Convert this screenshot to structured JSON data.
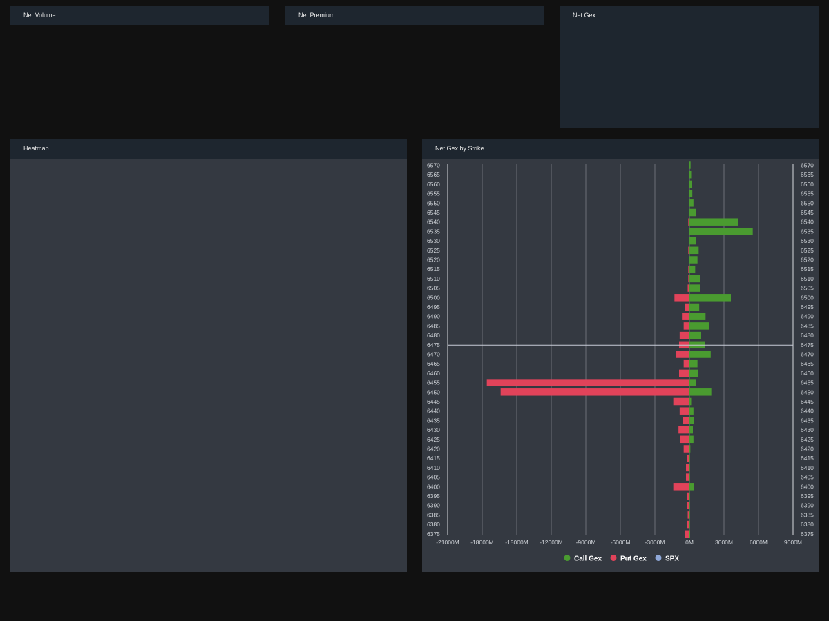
{
  "panels": {
    "net_volume": {
      "title": "Net Volume"
    },
    "net_premium": {
      "title": "Net Premium"
    },
    "net_gex": {
      "title": "Net Gex"
    },
    "heatmap": {
      "title": "Heatmap"
    },
    "net_gex_by_strike": {
      "title": "Net Gex by Strike"
    }
  },
  "colors": {
    "call": "#4a9b30",
    "put": "#e1435a",
    "spx": "#8fa8d8"
  },
  "chart_data": {
    "type": "bar",
    "orientation": "horizontal",
    "title": "Net Gex by Strike",
    "xlim": [
      -21000,
      9000
    ],
    "x_ticks": [
      -21000,
      -18000,
      -15000,
      -12000,
      -9000,
      -6000,
      -3000,
      0,
      3000,
      6000,
      9000
    ],
    "x_tick_labels": [
      "-21000M",
      "-18000M",
      "-15000M",
      "-12000M",
      "-9000M",
      "-6000M",
      "-3000M",
      "0M",
      "3000M",
      "6000M",
      "9000M"
    ],
    "grid": "vertical",
    "legend_position": "bottom-center",
    "left_axis_labels": [
      "6570",
      "6565",
      "6560",
      "6555",
      "6550",
      "6545",
      "6540",
      "6535",
      "6530",
      "6525",
      "6520",
      "6515",
      "6510",
      "6505",
      "6500",
      "6495",
      "6490",
      "6485",
      "6480",
      "6475",
      "6470",
      "6465",
      "6460",
      "6455",
      "6450",
      "6445",
      "6440",
      "6435",
      "6430",
      "6425",
      "6420",
      "6415",
      "6410",
      "6405",
      "6400",
      "6395",
      "6390",
      "6385",
      "6380",
      "6375"
    ],
    "right_axis_labels": [
      "6570",
      "6565",
      "6560",
      "6555",
      "6550",
      "6545",
      "6540",
      "6535",
      "6530",
      "6525",
      "6520",
      "6515",
      "6510",
      "6505",
      "6500",
      "6495",
      "6490",
      "6485",
      "6480",
      "6475",
      "6470",
      "6465",
      "6460",
      "6455",
      "6450",
      "6445",
      "6440",
      "6435",
      "6430",
      "6425",
      "6420",
      "6415",
      "6410",
      "6405",
      "6400",
      "6395",
      "6390",
      "6385",
      "6380",
      "6375"
    ],
    "strikes": [
      6570,
      6565,
      6560,
      6555,
      6550,
      6545,
      6540,
      6535,
      6530,
      6525,
      6520,
      6515,
      6510,
      6505,
      6500,
      6495,
      6490,
      6485,
      6480,
      6475,
      6470,
      6465,
      6460,
      6455,
      6450,
      6445,
      6440,
      6435,
      6430,
      6425,
      6420,
      6415,
      6410,
      6405,
      6400,
      6395,
      6390,
      6385,
      6380,
      6375
    ],
    "series": [
      {
        "name": "Call Gex",
        "values": [
          100,
          150,
          180,
          250,
          350,
          550,
          4200,
          5500,
          600,
          800,
          700,
          500,
          900,
          900,
          3600,
          850,
          1400,
          1700,
          1000,
          1350,
          1850,
          700,
          750,
          550,
          1900,
          150,
          350,
          400,
          300,
          350,
          80,
          40,
          40,
          40,
          400,
          40,
          30,
          30,
          30,
          60
        ]
      },
      {
        "name": "Put Gex",
        "values": [
          0,
          0,
          0,
          0,
          0,
          0,
          -100,
          -50,
          -50,
          -100,
          -50,
          -100,
          -100,
          -150,
          -1300,
          -400,
          -650,
          -500,
          -850,
          -900,
          -1200,
          -500,
          -900,
          -17600,
          -16400,
          -1400,
          -850,
          -600,
          -950,
          -800,
          -500,
          -200,
          -300,
          -300,
          -1400,
          -200,
          -200,
          -150,
          -200,
          -400
        ]
      },
      {
        "name": "SPX",
        "values": [
          6475
        ]
      }
    ]
  }
}
